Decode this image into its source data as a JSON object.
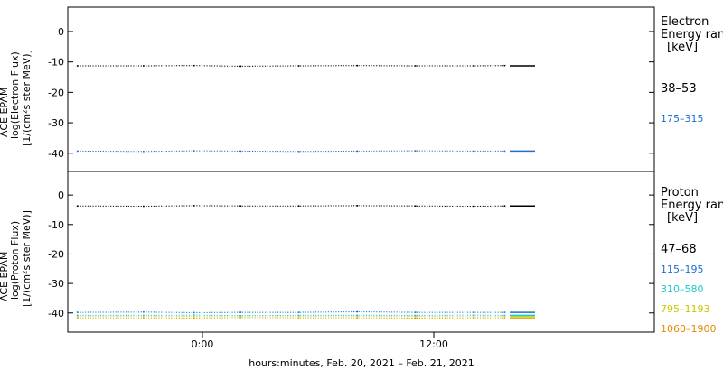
{
  "xlabel": "hours:minutes, Feb. 20, 2021 – Feb. 21, 2021",
  "x_ticks": [
    "0:00",
    "12:00"
  ],
  "chart_data": [
    {
      "type": "scatter",
      "ylabel": [
        "ACE EPAM",
        "log(Electron Flux)",
        "[1/(cm²s ster MeV)]"
      ],
      "ylim": [
        -46,
        8
      ],
      "y_ticks": [
        0,
        -10,
        -20,
        -30,
        -40
      ],
      "grid": false,
      "legend_title": [
        "Electron",
        "Energy ran",
        "[keV]"
      ],
      "legend_position": "right",
      "x_unit": "hours since Feb. 20, 2021 0:00",
      "xlim": [
        -6.9,
        23.3
      ],
      "series": [
        {
          "name": "38–53",
          "color": "#000000",
          "baseline": -11.3,
          "x": [
            -6.4,
            -3.0,
            -0.4,
            2.0,
            5.0,
            8.0,
            11.0,
            14.0,
            15.6
          ],
          "values": [
            -11.3,
            -11.3,
            -11.2,
            -11.4,
            -11.3,
            -11.2,
            -11.3,
            -11.3,
            -11.2
          ]
        },
        {
          "name": "175–315",
          "color": "#1d6fcf",
          "baseline": -39.3,
          "x": [
            -6.4,
            -3.0,
            -0.4,
            2.0,
            5.0,
            8.0,
            11.0,
            14.0,
            15.6
          ],
          "values": [
            -39.3,
            -39.4,
            -39.2,
            -39.3,
            -39.4,
            -39.3,
            -39.2,
            -39.3,
            -39.3
          ]
        }
      ]
    },
    {
      "type": "scatter",
      "ylabel": [
        "ACE EPAM",
        "log(Proton Flux)",
        "[1/(cm²s ster MeV)]"
      ],
      "ylim": [
        -46.5,
        8
      ],
      "y_ticks": [
        0,
        -10,
        -20,
        -30,
        -40
      ],
      "grid": false,
      "legend_title": [
        "Proton",
        "Energy ran",
        "[keV]"
      ],
      "legend_position": "right",
      "x_unit": "hours since Feb. 20, 2021 0:00",
      "xlim": [
        -6.9,
        23.3
      ],
      "series": [
        {
          "name": "47–68",
          "color": "#000000",
          "baseline": -3.7,
          "x": [
            -6.4,
            -3.0,
            -0.4,
            2.0,
            5.0,
            8.0,
            11.0,
            14.0,
            15.6
          ],
          "values": [
            -3.7,
            -3.8,
            -3.6,
            -3.7,
            -3.7,
            -3.6,
            -3.7,
            -3.8,
            -3.7
          ]
        },
        {
          "name": "115–195",
          "color": "#1d6fcf",
          "baseline": -39.8,
          "x": [
            -6.4,
            -3.0,
            -0.4,
            2.0,
            5.0,
            8.0,
            11.0,
            14.0,
            15.6
          ],
          "values": [
            -39.8,
            -39.7,
            -39.9,
            -39.8,
            -39.8,
            -39.6,
            -39.8,
            -39.8,
            -39.8
          ]
        },
        {
          "name": "310–580",
          "color": "#22c7c7",
          "baseline": -40.8,
          "x": [
            -6.4,
            -3.0,
            -0.4,
            2.0,
            5.0,
            8.0,
            11.0,
            14.0,
            15.6
          ],
          "values": [
            -40.8,
            -40.8,
            -40.7,
            -40.9,
            -40.8,
            -40.8,
            -40.8,
            -40.7,
            -40.8
          ]
        },
        {
          "name": "795–1193",
          "color": "#c8c800",
          "baseline": -41.3,
          "x": [
            -6.4,
            -3.0,
            -0.4,
            2.0,
            5.0,
            8.0,
            11.0,
            14.0,
            15.6
          ],
          "values": [
            -41.3,
            -41.3,
            -41.2,
            -41.4,
            -41.3,
            -41.3,
            -41.2,
            -41.3,
            -41.3
          ]
        },
        {
          "name": "1060–1900",
          "color": "#e38a00",
          "baseline": -41.9,
          "x": [
            -6.4,
            -3.0,
            -0.4,
            2.0,
            5.0,
            8.0,
            11.0,
            14.0,
            15.6
          ],
          "values": [
            -41.9,
            -41.9,
            -41.8,
            -42.0,
            -41.9,
            -41.9,
            -41.8,
            -41.9,
            -41.9
          ]
        }
      ]
    }
  ]
}
